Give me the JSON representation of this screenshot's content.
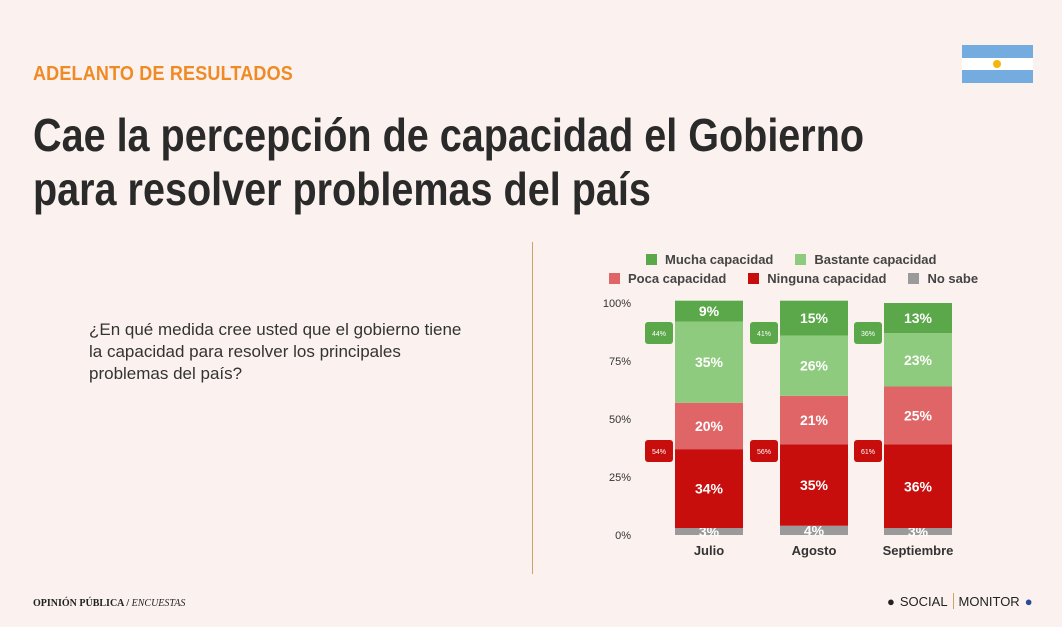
{
  "header": {
    "kicker": "ADELANTO DE RESULTADOS",
    "title_line1": "Cae la percepción de capacidad el Gobierno",
    "title_line2": "para resolver problemas del país",
    "flag_icon": "argentina-flag-icon"
  },
  "question": "¿En qué medida cree usted que el gobierno tiene la capacidad para resolver los principales problemas del país?",
  "footer": {
    "left": "OPINIÓN PÚBLICA",
    "left_italic": "ENCUESTAS",
    "brand1": "SOCIAL",
    "brand2": "MONITOR"
  },
  "chart_data": {
    "type": "bar",
    "stacked": true,
    "categories": [
      "Julio",
      "Agosto",
      "Septiembre"
    ],
    "ylim": [
      0,
      100
    ],
    "yticks": [
      "0%",
      "25%",
      "50%",
      "75%",
      "100%"
    ],
    "legend_position": "top",
    "series": [
      {
        "name": "No sabe",
        "color": "#9a9a9a",
        "values": [
          3,
          4,
          3
        ]
      },
      {
        "name": "Ninguna capacidad",
        "color": "#c80d0d",
        "values": [
          34,
          35,
          36
        ]
      },
      {
        "name": "Poca capacidad",
        "color": "#e06566",
        "values": [
          20,
          21,
          25
        ]
      },
      {
        "name": "Bastante capacidad",
        "color": "#8fcb7e",
        "values": [
          35,
          26,
          23
        ]
      },
      {
        "name": "Mucha capacidad",
        "color": "#5aa84a",
        "values": [
          9,
          15,
          13
        ]
      }
    ],
    "legend_order": [
      "Mucha capacidad",
      "Bastante capacidad",
      "Poca capacidad",
      "Ninguna capacidad",
      "No sabe"
    ],
    "positive_totals": [
      "44%",
      "41%",
      "36%"
    ],
    "negative_totals": [
      "54%",
      "56%",
      "61%"
    ]
  }
}
